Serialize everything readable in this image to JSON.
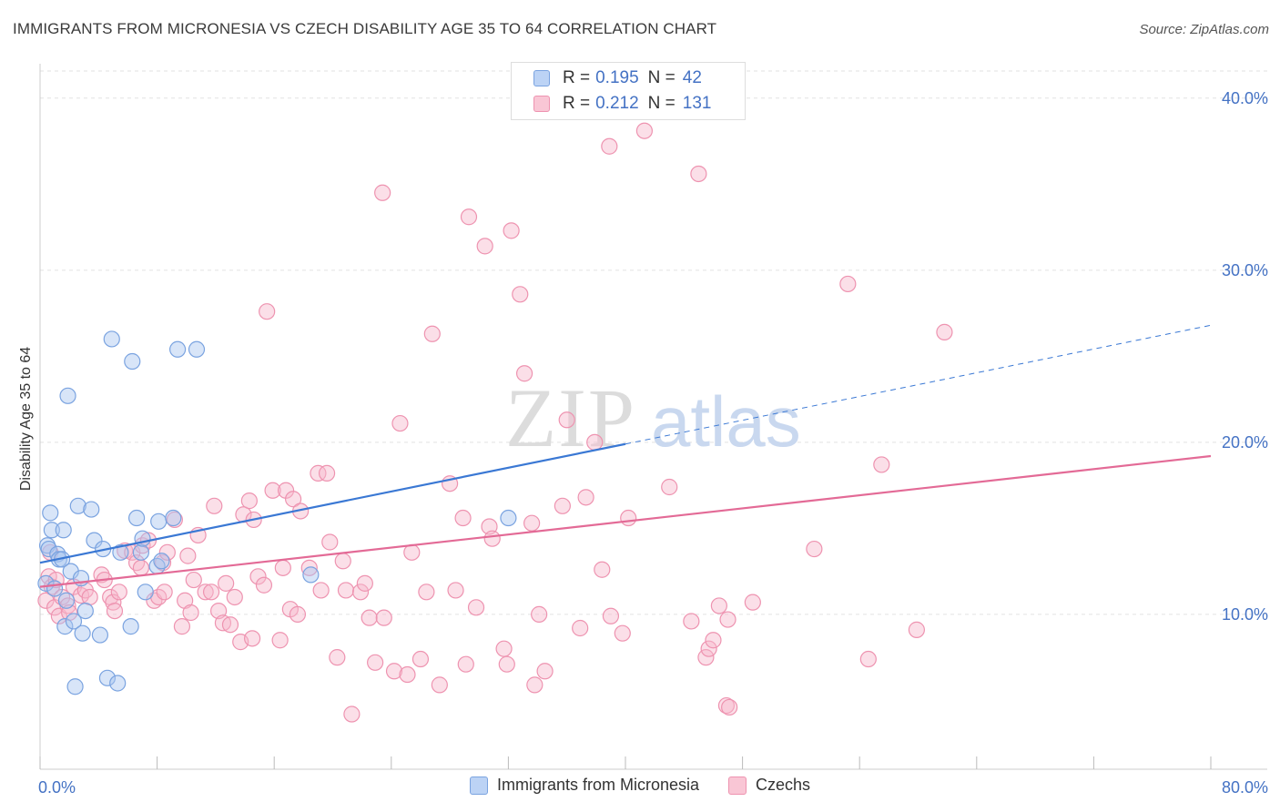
{
  "header": {
    "title": "IMMIGRANTS FROM MICRONESIA VS CZECH DISABILITY AGE 35 TO 64 CORRELATION CHART",
    "source": "Source: ZipAtlas.com"
  },
  "watermark": {
    "zip": "ZIP",
    "atlas": "atlas"
  },
  "legend_top": {
    "r_label": "R =",
    "n_label": "N =",
    "rows": [
      {
        "r": "0.195",
        "n": "42"
      },
      {
        "r": "0.212",
        "n": "131"
      }
    ]
  },
  "chart_data": {
    "type": "scatter",
    "title": "IMMIGRANTS FROM MICRONESIA VS CZECH DISABILITY AGE 35 TO 64 CORRELATION CHART",
    "xlabel": "",
    "ylabel": "Disability Age 35 to 64",
    "xlim": [
      0,
      80
    ],
    "ylim": [
      1,
      42
    ],
    "x_tick_labels": [
      "0.0%",
      "80.0%"
    ],
    "y_ticks": [
      10,
      20,
      30,
      40
    ],
    "y_tick_labels": [
      "10.0%",
      "20.0%",
      "30.0%",
      "40.0%"
    ],
    "grid": true,
    "legend_position": "bottom",
    "colors": {
      "micronesia_fill": "#a9c5f0",
      "micronesia_stroke": "#7aa3e0",
      "micronesia_line": "#3a78d4",
      "czech_fill": "#f7b8cb",
      "czech_stroke": "#ee93b0",
      "czech_line": "#e36a96"
    },
    "series": [
      {
        "name": "Immigrants from Micronesia",
        "r": 0.195,
        "n": 42,
        "trend": {
          "x": [
            0,
            40
          ],
          "y": [
            13.0,
            19.9
          ]
        },
        "trend_dashed": {
          "x": [
            40,
            80
          ],
          "y": [
            19.9,
            26.8
          ]
        },
        "points": [
          [
            0.4,
            11.8
          ],
          [
            0.5,
            14.0
          ],
          [
            0.6,
            13.8
          ],
          [
            0.7,
            15.9
          ],
          [
            0.8,
            14.9
          ],
          [
            1.0,
            11.5
          ],
          [
            1.2,
            13.5
          ],
          [
            1.3,
            13.2
          ],
          [
            1.5,
            13.2
          ],
          [
            1.6,
            14.9
          ],
          [
            1.7,
            9.3
          ],
          [
            1.8,
            10.8
          ],
          [
            1.9,
            22.7
          ],
          [
            2.1,
            12.5
          ],
          [
            2.3,
            9.6
          ],
          [
            2.6,
            16.3
          ],
          [
            2.8,
            12.1
          ],
          [
            2.9,
            8.9
          ],
          [
            3.1,
            10.2
          ],
          [
            3.5,
            16.1
          ],
          [
            3.7,
            14.3
          ],
          [
            4.1,
            8.8
          ],
          [
            4.3,
            13.8
          ],
          [
            4.6,
            6.3
          ],
          [
            4.9,
            26.0
          ],
          [
            5.3,
            6.0
          ],
          [
            5.5,
            13.6
          ],
          [
            6.2,
            9.3
          ],
          [
            6.3,
            24.7
          ],
          [
            6.6,
            15.6
          ],
          [
            6.9,
            13.6
          ],
          [
            7.0,
            14.4
          ],
          [
            7.2,
            11.3
          ],
          [
            8.0,
            12.8
          ],
          [
            8.1,
            15.4
          ],
          [
            8.3,
            13.1
          ],
          [
            9.1,
            15.6
          ],
          [
            9.4,
            25.4
          ],
          [
            10.7,
            25.4
          ],
          [
            18.5,
            12.3
          ],
          [
            32.0,
            15.6
          ],
          [
            2.4,
            5.8
          ]
        ]
      },
      {
        "name": "Czechs",
        "r": 0.212,
        "n": 131,
        "trend": {
          "x": [
            0,
            80
          ],
          "y": [
            11.6,
            19.2
          ]
        },
        "points": [
          [
            0.4,
            10.8
          ],
          [
            0.6,
            12.2
          ],
          [
            0.8,
            11.6
          ],
          [
            1.0,
            10.4
          ],
          [
            1.3,
            9.9
          ],
          [
            1.5,
            11.0
          ],
          [
            1.9,
            10.5
          ],
          [
            2.0,
            10.1
          ],
          [
            2.3,
            11.6
          ],
          [
            2.8,
            11.1
          ],
          [
            3.1,
            11.4
          ],
          [
            3.4,
            11.0
          ],
          [
            4.2,
            12.3
          ],
          [
            4.4,
            12.0
          ],
          [
            4.8,
            11.0
          ],
          [
            5.0,
            10.7
          ],
          [
            5.1,
            10.2
          ],
          [
            5.4,
            11.3
          ],
          [
            5.8,
            13.7
          ],
          [
            6.3,
            13.6
          ],
          [
            6.6,
            13.0
          ],
          [
            6.9,
            12.7
          ],
          [
            7.0,
            14.0
          ],
          [
            7.4,
            14.3
          ],
          [
            7.8,
            10.8
          ],
          [
            8.1,
            11.0
          ],
          [
            8.4,
            13.0
          ],
          [
            8.5,
            11.3
          ],
          [
            8.7,
            13.6
          ],
          [
            9.2,
            15.5
          ],
          [
            9.7,
            9.3
          ],
          [
            9.9,
            10.8
          ],
          [
            10.1,
            13.4
          ],
          [
            10.3,
            10.1
          ],
          [
            10.5,
            12.0
          ],
          [
            10.8,
            14.6
          ],
          [
            11.3,
            11.3
          ],
          [
            11.7,
            11.3
          ],
          [
            11.9,
            16.3
          ],
          [
            12.2,
            10.2
          ],
          [
            12.5,
            9.5
          ],
          [
            12.7,
            11.8
          ],
          [
            13.0,
            9.4
          ],
          [
            13.3,
            11.0
          ],
          [
            13.7,
            8.4
          ],
          [
            13.9,
            15.8
          ],
          [
            14.3,
            16.6
          ],
          [
            14.5,
            8.6
          ],
          [
            14.6,
            15.5
          ],
          [
            14.9,
            12.2
          ],
          [
            15.3,
            11.7
          ],
          [
            15.5,
            27.6
          ],
          [
            15.9,
            17.2
          ],
          [
            16.4,
            8.5
          ],
          [
            16.6,
            12.7
          ],
          [
            16.8,
            17.2
          ],
          [
            17.1,
            10.3
          ],
          [
            17.3,
            16.7
          ],
          [
            17.6,
            10.0
          ],
          [
            17.8,
            16.0
          ],
          [
            18.4,
            12.7
          ],
          [
            19.0,
            18.2
          ],
          [
            19.2,
            11.4
          ],
          [
            19.6,
            18.2
          ],
          [
            19.8,
            14.2
          ],
          [
            20.3,
            7.5
          ],
          [
            20.9,
            11.4
          ],
          [
            20.7,
            13.1
          ],
          [
            21.3,
            4.2
          ],
          [
            21.9,
            11.3
          ],
          [
            22.2,
            11.8
          ],
          [
            22.5,
            9.8
          ],
          [
            22.9,
            7.2
          ],
          [
            23.4,
            34.5
          ],
          [
            23.5,
            9.8
          ],
          [
            24.2,
            6.7
          ],
          [
            24.6,
            21.1
          ],
          [
            25.1,
            6.5
          ],
          [
            25.4,
            13.6
          ],
          [
            26.0,
            7.4
          ],
          [
            26.4,
            11.3
          ],
          [
            26.8,
            26.3
          ],
          [
            27.3,
            5.9
          ],
          [
            28.0,
            17.6
          ],
          [
            28.4,
            11.4
          ],
          [
            28.9,
            15.6
          ],
          [
            29.1,
            7.1
          ],
          [
            29.3,
            33.1
          ],
          [
            29.8,
            10.4
          ],
          [
            30.4,
            31.4
          ],
          [
            30.7,
            15.1
          ],
          [
            30.9,
            14.4
          ],
          [
            31.7,
            8.0
          ],
          [
            31.9,
            7.1
          ],
          [
            32.2,
            32.3
          ],
          [
            32.8,
            28.6
          ],
          [
            33.1,
            24.0
          ],
          [
            33.6,
            15.3
          ],
          [
            33.8,
            5.9
          ],
          [
            34.1,
            10.0
          ],
          [
            34.5,
            6.7
          ],
          [
            35.7,
            16.3
          ],
          [
            36.0,
            21.3
          ],
          [
            36.9,
            9.2
          ],
          [
            37.3,
            16.8
          ],
          [
            37.9,
            20.0
          ],
          [
            38.4,
            12.6
          ],
          [
            38.9,
            37.2
          ],
          [
            39.0,
            9.9
          ],
          [
            39.8,
            8.9
          ],
          [
            40.2,
            15.6
          ],
          [
            41.3,
            38.1
          ],
          [
            43.0,
            17.4
          ],
          [
            44.5,
            9.6
          ],
          [
            45.0,
            35.6
          ],
          [
            45.5,
            7.5
          ],
          [
            45.7,
            8.0
          ],
          [
            46.0,
            8.5
          ],
          [
            46.4,
            10.5
          ],
          [
            46.9,
            4.7
          ],
          [
            47.1,
            4.6
          ],
          [
            47.0,
            9.7
          ],
          [
            48.7,
            10.7
          ],
          [
            52.9,
            13.8
          ],
          [
            55.2,
            29.2
          ],
          [
            56.6,
            7.4
          ],
          [
            57.5,
            18.7
          ],
          [
            59.9,
            9.1
          ],
          [
            61.8,
            26.4
          ],
          [
            0.7,
            13.6
          ],
          [
            1.1,
            12.0
          ]
        ]
      }
    ]
  },
  "legend_bottom": {
    "items": [
      "Immigrants from Micronesia",
      "Czechs"
    ]
  }
}
